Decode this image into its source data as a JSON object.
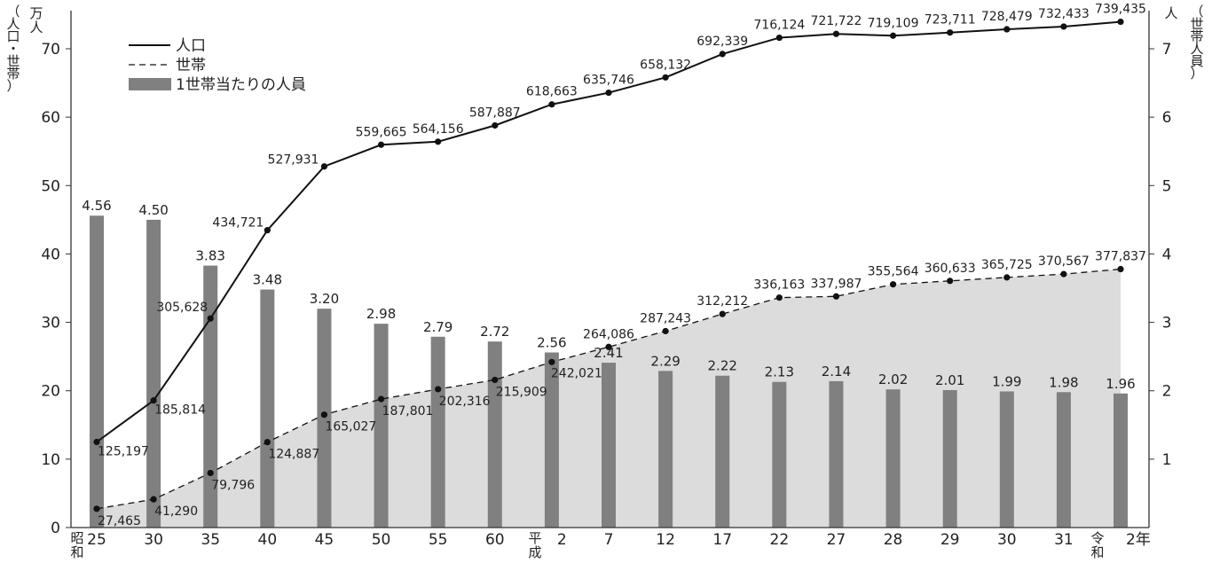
{
  "chart_data": {
    "type": "bar+line",
    "categories": [
      "25",
      "30",
      "35",
      "40",
      "45",
      "50",
      "55",
      "60",
      "2",
      "7",
      "12",
      "17",
      "22",
      "27",
      "28",
      "29",
      "30",
      "31",
      "2年"
    ],
    "era_labels": [
      {
        "text": "昭\n和",
        "at": 0
      },
      {
        "text": "平\n成",
        "at": 8
      },
      {
        "text": "令\n和",
        "at": 18
      }
    ],
    "left_axis": {
      "unit": "万人",
      "title": "（人口・世帯）",
      "ylim": [
        0,
        70
      ],
      "ticks": [
        "0",
        "10",
        "20",
        "30",
        "40",
        "50",
        "60",
        "70"
      ]
    },
    "right_axis": {
      "unit": "人",
      "title": "（世帯人員）",
      "ylim": [
        0,
        7
      ],
      "ticks": [
        "1",
        "2",
        "3",
        "4",
        "5",
        "6",
        "7"
      ]
    },
    "legend": {
      "position": "top-left",
      "items": [
        {
          "label": "人口",
          "style": "solid-line"
        },
        {
          "label": "世帯",
          "style": "dashed-line"
        },
        {
          "label": "1世帯当たりの人員",
          "style": "bar"
        }
      ]
    },
    "series": [
      {
        "name": "人口",
        "axis": "left",
        "type": "line",
        "values": [
          125197,
          185814,
          305628,
          434721,
          527931,
          559665,
          564156,
          587887,
          618663,
          635746,
          658132,
          692339,
          716124,
          721722,
          719109,
          723711,
          728479,
          732433,
          739435
        ],
        "labels": [
          "125,197",
          "185,814",
          "305,628",
          "434,721",
          "527,931",
          "559,665",
          "564,156",
          "587,887",
          "618,663",
          "635,746",
          "658,132",
          "692,339",
          "716,124",
          "721,722",
          "719,109",
          "723,711",
          "728,479",
          "732,433",
          "739,435"
        ]
      },
      {
        "name": "世帯",
        "axis": "left",
        "type": "area-dashed",
        "values": [
          27465,
          41290,
          79796,
          124887,
          165027,
          187801,
          202316,
          215909,
          242021,
          264086,
          287243,
          312212,
          336163,
          337987,
          355564,
          360633,
          365725,
          370567,
          377837
        ],
        "labels": [
          "27,465",
          "41,290",
          "79,796",
          "124,887",
          "165,027",
          "187,801",
          "202,316",
          "215,909",
          "242,021",
          "264,086",
          "287,243",
          "312,212",
          "336,163",
          "337,987",
          "355,564",
          "360,633",
          "365,725",
          "370,567",
          "377,837"
        ]
      },
      {
        "name": "1世帯当たりの人員",
        "axis": "right",
        "type": "bar",
        "values": [
          4.56,
          4.5,
          3.83,
          3.48,
          3.2,
          2.98,
          2.79,
          2.72,
          2.56,
          2.41,
          2.29,
          2.22,
          2.13,
          2.14,
          2.02,
          2.01,
          1.99,
          1.98,
          1.96
        ],
        "labels": [
          "4.56",
          "4.50",
          "3.83",
          "3.48",
          "3.20",
          "2.98",
          "2.79",
          "2.72",
          "2.56",
          "2.41",
          "2.29",
          "2.22",
          "2.13",
          "2.14",
          "2.02",
          "2.01",
          "1.99",
          "1.98",
          "1.96"
        ]
      }
    ],
    "colors": {
      "bar": "#808080",
      "area": "#dcdcdc",
      "line": "#111111",
      "axis": "#333333"
    }
  }
}
